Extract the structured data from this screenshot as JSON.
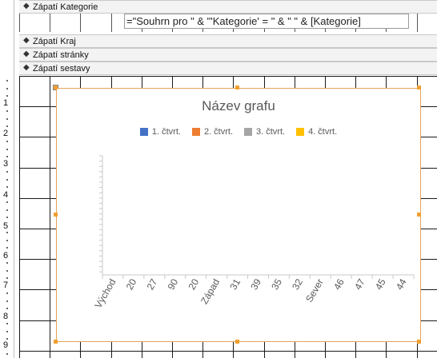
{
  "sections": {
    "category_footer": "Zápatí Kategorie",
    "region_footer": "Zápatí Kraj",
    "page_footer": "Zápatí stránky",
    "report_footer": "Zápatí sestavy"
  },
  "expression_textbox": "=\"Souhrn pro \" & \"'Kategorie' = \" & \" \" & [Kategorie]",
  "ruler": [
    "1",
    "2",
    "3",
    "4",
    "5",
    "6",
    "7",
    "8",
    "9"
  ],
  "colors": {
    "selection": "#f0a030",
    "q1": "#4472c4",
    "q2": "#ed7d31",
    "q3": "#a5a5a5",
    "q4": "#ffc000"
  },
  "icons": {
    "section_toggle": "section-collapse-arrow-icon"
  },
  "chart_data": {
    "type": "bar",
    "title": "Název grafu",
    "legend": [
      "1. čtvrt.",
      "2. čtvrt.",
      "3. čtvrt.",
      "4. čtvrt."
    ],
    "legend_position": "top",
    "categories": [
      "Východ",
      "20",
      "27",
      "90",
      "20",
      "Západ",
      "31",
      "39",
      "35",
      "32",
      "Sever",
      "46",
      "47",
      "45",
      "44"
    ],
    "series": [],
    "grid": false
  }
}
